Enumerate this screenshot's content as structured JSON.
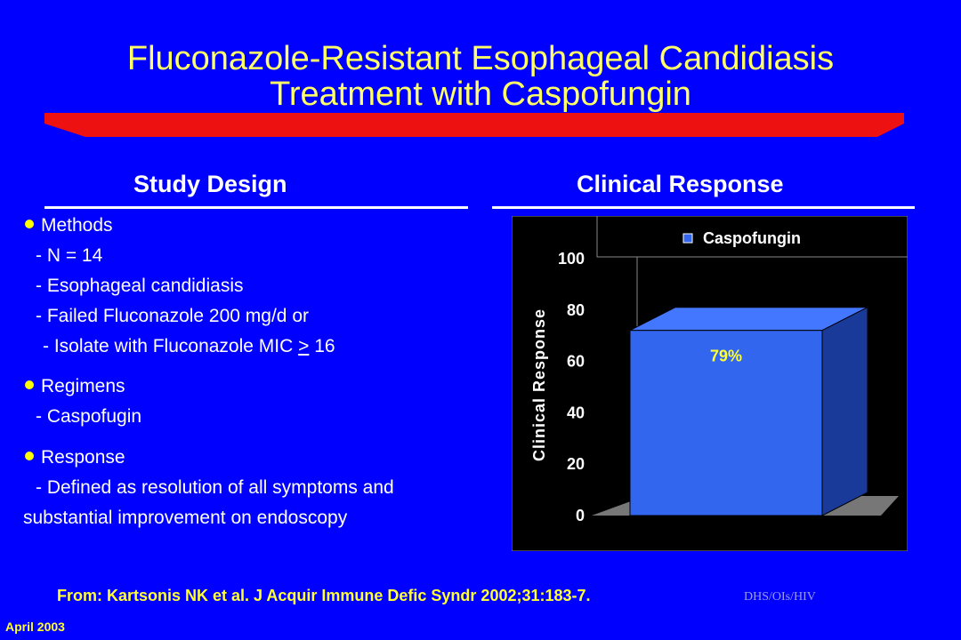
{
  "slide": {
    "title_line1": "Fluconazole-Resistant Esophageal Candidiasis",
    "title_line2": "Treatment with Caspofungin",
    "left_heading": "Study Design",
    "right_heading": "Clinical Response",
    "methods": {
      "label": "Methods",
      "items": [
        "- N = 14",
        "- Esophageal candidiasis",
        "- Failed Fluconazole 200 mg/d or"
      ],
      "isolate_prefix": "- Isolate with Fluconazole MIC ",
      "isolate_symbol": ">",
      "isolate_value": " 16"
    },
    "regimens": {
      "label": "Regimens",
      "items": [
        "- Caspofugin"
      ]
    },
    "response": {
      "label": "Response",
      "line1": "- Defined as resolution of all symptoms and",
      "line2": "substantial improvement on endoscopy"
    },
    "citation": "From: Kartsonis NK  et al.  J Acquir Immune Defic Syndr 2002;31:183-7.",
    "org_mark": "DHS/OIs/HIV",
    "date": "April 2003"
  },
  "colors": {
    "background": "#0000ff",
    "title": "#ffff66",
    "banner": "#ee1111",
    "bar_front": "#3366ee",
    "bar_side": "#1a3a9a",
    "bar_top": "#4477ff",
    "data_label": "#ffff33"
  },
  "chart_data": {
    "type": "bar",
    "categories": [
      "Caspofungin"
    ],
    "series": [
      {
        "name": "Caspofungin",
        "values": [
          79
        ]
      }
    ],
    "data_labels": [
      "79%"
    ],
    "ylabel": "Clinical Response",
    "ylim": [
      0,
      100
    ],
    "yticks": [
      "0",
      "20",
      "40",
      "60",
      "80",
      "100"
    ],
    "grid": true,
    "legend": "top-right",
    "three_d": true
  }
}
